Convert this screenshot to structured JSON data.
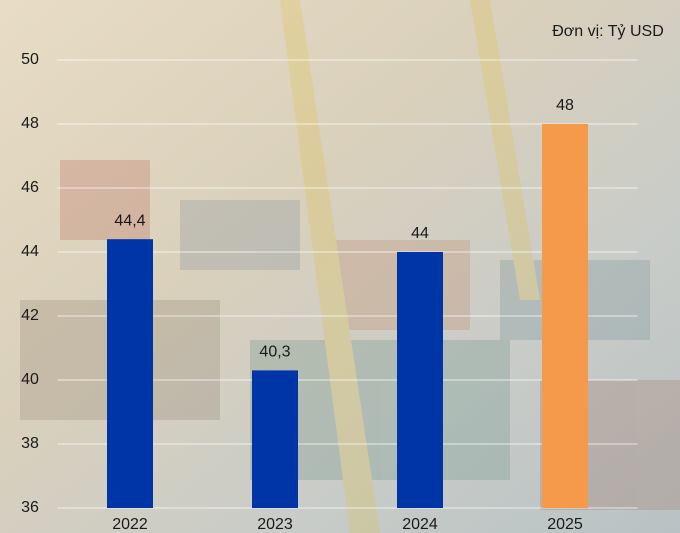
{
  "chart_data": {
    "type": "bar",
    "unit_label": "Đơn vị: Tỷ USD",
    "categories": [
      "2022",
      "2023",
      "2024",
      "2025"
    ],
    "values": [
      44.4,
      40.3,
      44,
      48
    ],
    "value_labels": [
      "44,4",
      "40,3",
      "44",
      "48"
    ],
    "colors": [
      "#0035a8",
      "#0035a8",
      "#0035a8",
      "#f5994a"
    ],
    "ylim": [
      36,
      50
    ],
    "yticks": [
      36,
      38,
      40,
      42,
      44,
      46,
      48,
      50
    ],
    "grid": true
  }
}
